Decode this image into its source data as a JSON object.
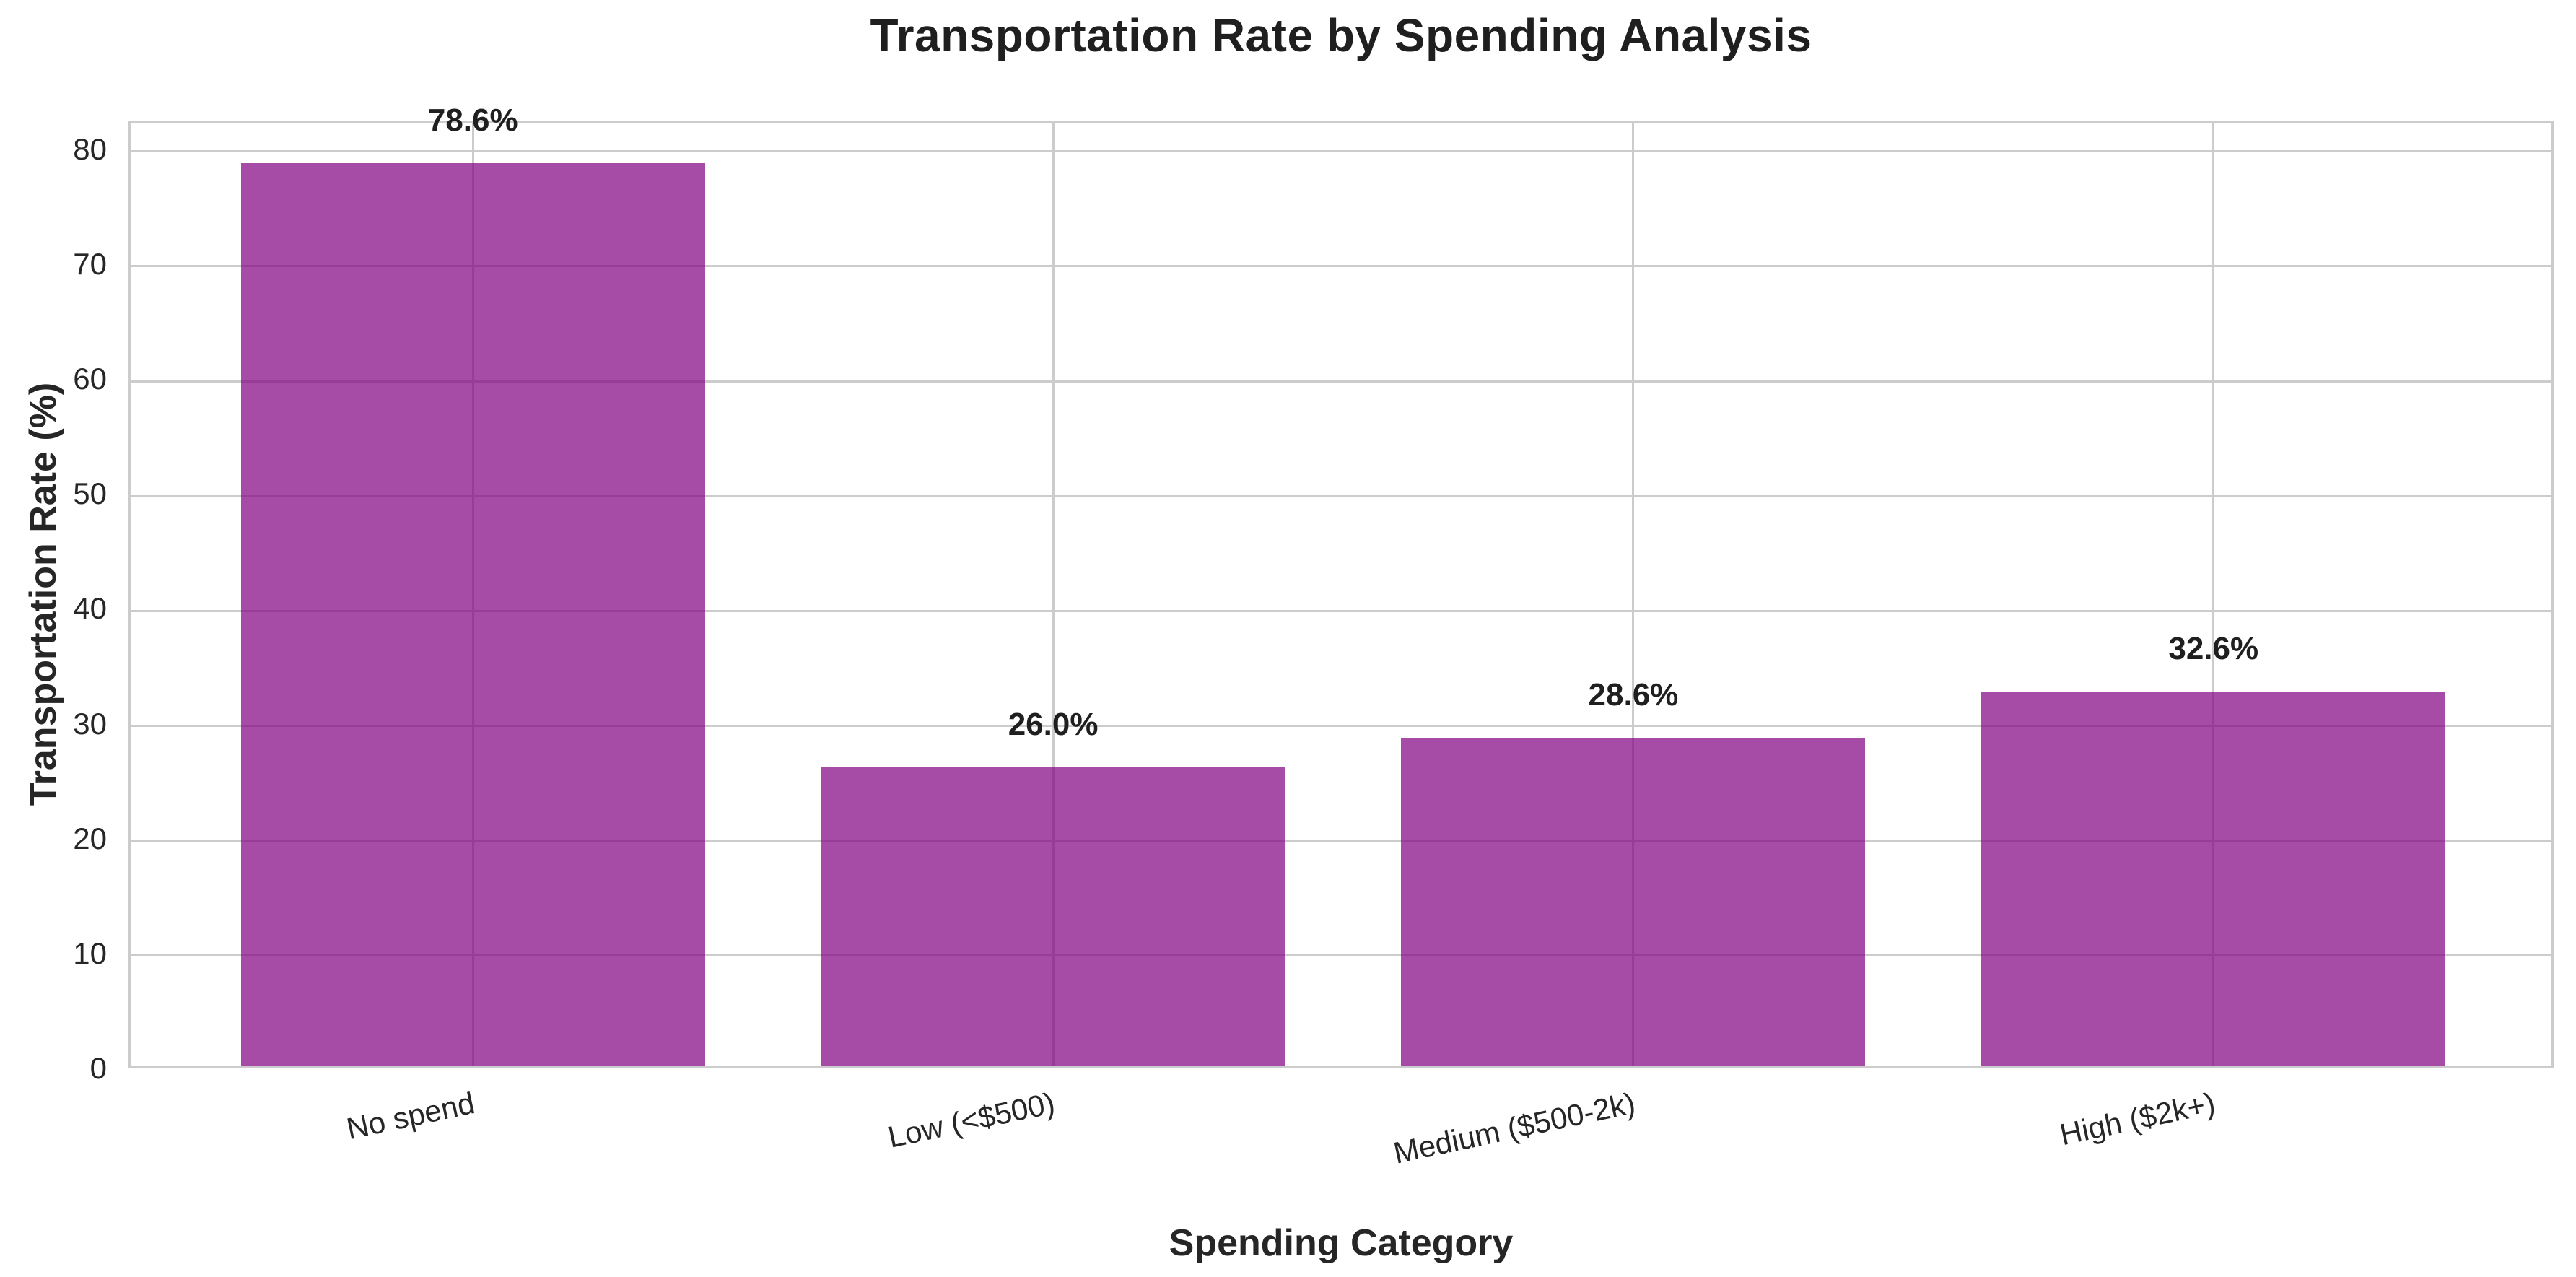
{
  "figure": {
    "title": "Transportation Rate by Spending Analysis",
    "x_axis_label": "Spending Category",
    "y_axis_label": "Transportation Rate (%)"
  },
  "chart_data": {
    "type": "bar",
    "title": "Transportation Rate by Spending Analysis",
    "xlabel": "Spending Category",
    "ylabel": "Transportation Rate (%)",
    "categories": [
      "No spend",
      "Low (<$500)",
      "Medium ($500-2k)",
      "High ($2k+)"
    ],
    "values": [
      78.6,
      26.0,
      28.6,
      32.6
    ],
    "bar_labels": [
      "78.6%",
      "26.0%",
      "28.6%",
      "32.6%"
    ],
    "y_ticks": [
      0,
      10,
      20,
      30,
      40,
      50,
      60,
      70,
      80
    ],
    "ylim": [
      0,
      82.5
    ],
    "grid": "both",
    "legend_position": "none",
    "x_tick_rotation_deg": 12,
    "colors": {
      "bar_fill": "#800080",
      "bar_alpha": 0.7,
      "grid": "#cccccc",
      "spine": "#cccccc",
      "text": "#262626",
      "title_text": "#1f1f1f"
    }
  }
}
